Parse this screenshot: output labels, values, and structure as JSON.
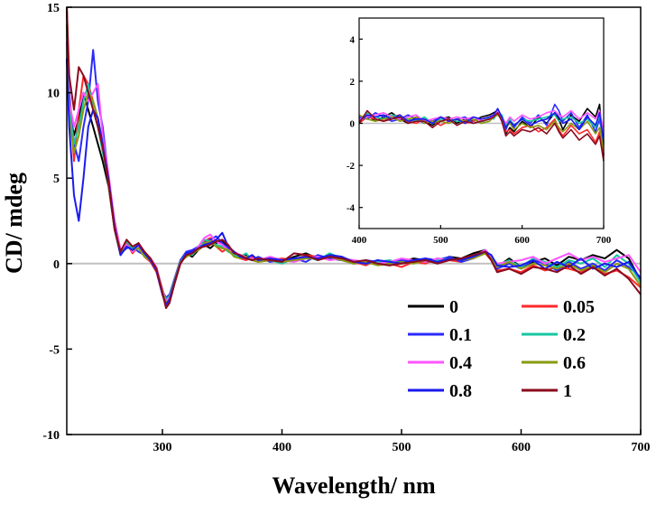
{
  "chart_data": [
    {
      "type": "line",
      "title": "",
      "xlabel": "Wavelength/ nm",
      "ylabel": "CD/ mdeg",
      "xlim": [
        220,
        700
      ],
      "ylim": [
        -10,
        15
      ],
      "x_ticks": [
        300,
        400,
        500,
        600,
        700
      ],
      "y_ticks": [
        -10,
        -5,
        0,
        5,
        10,
        15
      ],
      "grid": false,
      "legend_position": "bottom-right",
      "zero_line_color": "#c0c0c0",
      "series": [
        {
          "name": "0",
          "color": "#000000"
        },
        {
          "name": "0.05",
          "color": "#ff2a2a"
        },
        {
          "name": "0.1",
          "color": "#2a2aff"
        },
        {
          "name": "0.2",
          "color": "#17c7a0"
        },
        {
          "name": "0.4",
          "color": "#ff55ff"
        },
        {
          "name": "0.6",
          "color": "#8a9a10"
        },
        {
          "name": "0.8",
          "color": "#1a1aee"
        },
        {
          "name": "1",
          "color": "#8b0a1e"
        }
      ],
      "x": [
        220,
        222,
        226,
        230,
        234,
        238,
        242,
        246,
        250,
        255,
        260,
        265,
        270,
        275,
        280,
        285,
        290,
        295,
        300,
        303,
        306,
        310,
        315,
        320,
        325,
        330,
        335,
        340,
        345,
        350,
        355,
        360,
        365,
        370,
        375,
        380,
        390,
        400,
        410,
        420,
        430,
        440,
        450,
        460,
        470,
        480,
        490,
        500,
        510,
        520,
        530,
        540,
        550,
        560,
        570,
        575,
        580,
        590,
        600,
        610,
        620,
        630,
        640,
        650,
        660,
        670,
        680,
        690,
        700
      ],
      "series_values": [
        [
          15,
          9,
          7.5,
          8.5,
          10,
          9,
          8,
          7,
          6,
          4.5,
          2,
          0.5,
          1,
          0.8,
          1.2,
          0.6,
          0.3,
          -0.3,
          -1.5,
          -2.3,
          -2,
          -1,
          0,
          0.6,
          0.4,
          0.8,
          1.1,
          0.9,
          1.2,
          1.3,
          1.0,
          0.6,
          0.4,
          0.5,
          0.3,
          0.2,
          0.3,
          0.1,
          0.4,
          0.6,
          0.3,
          0.5,
          0.4,
          0.0,
          0.1,
          0.0,
          -0.1,
          0.1,
          0.3,
          0.2,
          0.1,
          0.4,
          0.3,
          0.6,
          0.8,
          0.4,
          -0.2,
          0.3,
          -0.2,
          0.1,
          0.3,
          -0.1,
          0.4,
          0.2,
          0.5,
          0.3,
          0.8,
          0.3,
          -1.0
        ],
        [
          15,
          10,
          6,
          9,
          11,
          10.5,
          9.5,
          8.5,
          7,
          5,
          2.5,
          0.8,
          1.2,
          0.6,
          1.0,
          0.4,
          0.1,
          -0.5,
          -1.8,
          -2.5,
          -2.2,
          -1.2,
          0,
          0.5,
          0.7,
          0.9,
          1.3,
          1.5,
          1.0,
          0.7,
          0.9,
          0.5,
          0.3,
          0.2,
          0.4,
          0.1,
          0.2,
          0.3,
          0.2,
          0.5,
          0.4,
          0.3,
          0.2,
          0.1,
          -0.1,
          0.2,
          0.0,
          -0.2,
          0.1,
          0.0,
          0.3,
          0.2,
          0.1,
          0.4,
          0.6,
          0.2,
          -0.4,
          -0.3,
          -0.5,
          -0.1,
          -0.4,
          -0.2,
          -0.3,
          -0.5,
          -0.2,
          -0.6,
          -0.4,
          -0.8,
          -1.4
        ],
        [
          12,
          10,
          7,
          6,
          8,
          9.5,
          12.5,
          9.5,
          8,
          5,
          2.2,
          0.6,
          0.9,
          1.0,
          0.7,
          0.5,
          0.2,
          -0.4,
          -1.6,
          -2.0,
          -1.8,
          -0.9,
          0.2,
          0.7,
          0.8,
          1.0,
          1.2,
          1.4,
          1.6,
          1.2,
          0.9,
          0.6,
          0.5,
          0.3,
          0.2,
          0.4,
          0.1,
          0.2,
          0.3,
          0.1,
          0.5,
          0.3,
          0.2,
          0.0,
          0.2,
          0.1,
          0.0,
          0.2,
          0.1,
          0.3,
          0.2,
          0.4,
          0.1,
          0.3,
          0.7,
          0.3,
          -0.3,
          0.0,
          -0.3,
          0.2,
          0.0,
          -0.4,
          0.1,
          -0.3,
          0.0,
          -0.4,
          0.2,
          -0.2,
          -0.8
        ],
        [
          14,
          9,
          7,
          8,
          9.5,
          10.5,
          9,
          8,
          6.5,
          4.8,
          2.3,
          0.7,
          1.3,
          0.9,
          1.1,
          0.5,
          0.2,
          -0.4,
          -1.7,
          -2.1,
          -1.9,
          -1.0,
          0.1,
          0.6,
          0.5,
          0.9,
          1.4,
          1.3,
          1.1,
          1.0,
          0.7,
          0.5,
          0.4,
          0.6,
          0.2,
          0.3,
          0.2,
          0.0,
          0.3,
          0.4,
          0.2,
          0.6,
          0.3,
          0.1,
          0.0,
          0.1,
          0.2,
          0.0,
          0.2,
          0.1,
          0.2,
          0.3,
          0.2,
          0.5,
          0.7,
          0.5,
          -0.1,
          0.2,
          -0.2,
          0.3,
          0.1,
          -0.2,
          0.2,
          0.0,
          0.3,
          -0.2,
          0.5,
          0.0,
          -1.1
        ],
        [
          13,
          9.5,
          8,
          9,
          10,
          9.5,
          10,
          10.5,
          7.5,
          5.2,
          2.4,
          0.8,
          1.1,
          0.7,
          1.0,
          0.6,
          0.3,
          -0.2,
          -1.5,
          -2.2,
          -2.0,
          -1.1,
          0.0,
          0.5,
          0.6,
          1.0,
          1.5,
          1.7,
          1.3,
          1.1,
          0.8,
          0.7,
          0.5,
          0.4,
          0.3,
          0.2,
          0.4,
          0.2,
          0.1,
          0.3,
          0.4,
          0.2,
          0.3,
          0.2,
          0.1,
          0.0,
          0.1,
          0.3,
          0.2,
          0.1,
          0.3,
          0.2,
          0.3,
          0.4,
          0.8,
          0.4,
          0.0,
          0.1,
          0.2,
          0.4,
          0.0,
          0.3,
          0.6,
          0.2,
          0.4,
          0.1,
          0.3,
          0.5,
          -0.5
        ],
        [
          14,
          8.5,
          6.5,
          7.5,
          9,
          10,
          9.5,
          8.5,
          7,
          4.6,
          2.1,
          0.6,
          1.0,
          0.8,
          0.9,
          0.4,
          0.2,
          -0.3,
          -1.6,
          -2.3,
          -2.1,
          -1.0,
          0.1,
          0.4,
          0.6,
          0.8,
          1.2,
          1.3,
          1.0,
          0.9,
          0.8,
          0.4,
          0.3,
          0.4,
          0.2,
          0.1,
          0.2,
          0.1,
          0.2,
          0.3,
          0.3,
          0.4,
          0.2,
          0.0,
          0.1,
          -0.1,
          0.0,
          0.1,
          0.0,
          0.2,
          0.1,
          0.3,
          0.2,
          0.3,
          0.6,
          0.3,
          -0.2,
          0.1,
          -0.3,
          0.0,
          -0.1,
          -0.3,
          0.0,
          -0.4,
          -0.1,
          -0.5,
          0.0,
          -0.3,
          -1.3
        ],
        [
          12,
          8,
          4,
          2.5,
          5,
          8,
          9,
          8.5,
          7,
          4.9,
          2.2,
          0.5,
          1.0,
          0.8,
          1.1,
          0.6,
          0.2,
          -0.4,
          -1.8,
          -2.4,
          -2.1,
          -1.1,
          0.0,
          0.6,
          0.7,
          0.9,
          1.1,
          1.2,
          1.4,
          1.8,
          1.0,
          0.7,
          0.4,
          0.3,
          0.5,
          0.2,
          0.3,
          0.2,
          0.3,
          0.4,
          0.3,
          0.5,
          0.4,
          0.1,
          0.0,
          0.2,
          0.1,
          0.0,
          0.2,
          0.3,
          0.1,
          0.3,
          0.2,
          0.4,
          0.7,
          0.5,
          -0.1,
          -0.2,
          -0.1,
          0.2,
          -0.3,
          0.1,
          -0.2,
          0.3,
          -0.3,
          0.0,
          -0.2,
          0.1,
          -0.9
        ],
        [
          15,
          11,
          9,
          11.5,
          11,
          10,
          9,
          8,
          6.8,
          4.7,
          2.0,
          0.7,
          1.4,
          1.0,
          1.2,
          0.7,
          0.3,
          -0.3,
          -1.7,
          -2.6,
          -2.3,
          -1.2,
          0.0,
          0.5,
          0.6,
          0.9,
          1.0,
          1.1,
          1.3,
          1.4,
          1.1,
          0.6,
          0.5,
          0.3,
          0.2,
          0.3,
          0.2,
          0.1,
          0.6,
          0.5,
          0.2,
          0.4,
          0.3,
          0.1,
          0.2,
          0.0,
          -0.1,
          0.0,
          0.1,
          0.2,
          0.0,
          0.2,
          0.3,
          0.5,
          0.7,
          0.2,
          -0.5,
          -0.3,
          -0.6,
          -0.2,
          -0.3,
          -0.5,
          -0.1,
          -0.6,
          -0.2,
          -0.7,
          -0.3,
          -0.9,
          -1.8
        ]
      ]
    },
    {
      "type": "line",
      "title": "",
      "xlabel": "",
      "ylabel": "",
      "xlim": [
        400,
        700
      ],
      "ylim": [
        -5,
        5
      ],
      "x_ticks": [
        400,
        500,
        600,
        700
      ],
      "y_ticks": [
        -4,
        -2,
        0,
        2,
        4
      ],
      "grid": false,
      "x": [
        400,
        410,
        420,
        430,
        440,
        450,
        460,
        470,
        480,
        490,
        500,
        510,
        520,
        530,
        540,
        550,
        560,
        565,
        570,
        575,
        580,
        585,
        590,
        600,
        610,
        620,
        630,
        640,
        645,
        650,
        660,
        670,
        680,
        690,
        695,
        700
      ],
      "series_values": [
        [
          0.2,
          0.4,
          0.1,
          0.3,
          0.5,
          0.2,
          0.0,
          0.3,
          0.1,
          -0.1,
          0.2,
          0.3,
          0.0,
          0.2,
          0.1,
          0.3,
          0.4,
          0.5,
          0.6,
          0.2,
          -0.5,
          -0.2,
          -0.4,
          0.1,
          -0.2,
          0.3,
          0.0,
          0.5,
          0.2,
          -0.3,
          0.4,
          0.1,
          0.7,
          0.3,
          0.9,
          -1.5
        ],
        [
          0.0,
          0.3,
          0.2,
          0.1,
          0.3,
          0.4,
          0.1,
          0.0,
          0.2,
          0.1,
          -0.1,
          0.1,
          0.2,
          0.0,
          0.1,
          0.2,
          0.3,
          0.4,
          0.5,
          0.1,
          -0.4,
          -0.3,
          -0.5,
          -0.2,
          -0.1,
          -0.4,
          -0.2,
          0.2,
          -0.3,
          -0.6,
          -0.1,
          -0.5,
          -0.3,
          -0.9,
          -0.4,
          -1.6
        ],
        [
          0.3,
          0.2,
          0.5,
          0.3,
          0.1,
          0.2,
          0.4,
          0.2,
          0.0,
          0.1,
          0.3,
          0.1,
          0.2,
          0.3,
          0.0,
          0.1,
          0.2,
          0.3,
          0.4,
          0.3,
          -0.3,
          0.1,
          -0.2,
          0.3,
          0.0,
          0.4,
          -0.1,
          0.9,
          0.6,
          0.1,
          0.5,
          -0.2,
          0.4,
          -0.4,
          0.2,
          -1.0
        ],
        [
          0.1,
          0.5,
          0.3,
          0.2,
          0.4,
          0.3,
          0.2,
          0.1,
          0.3,
          0.0,
          0.2,
          0.2,
          0.1,
          0.1,
          0.2,
          0.0,
          0.3,
          0.2,
          0.5,
          0.4,
          -0.1,
          0.2,
          -0.1,
          0.2,
          0.1,
          0.2,
          0.3,
          0.4,
          0.1,
          0.2,
          0.3,
          0.0,
          0.2,
          -0.2,
          0.4,
          -1.0
        ],
        [
          0.2,
          0.3,
          0.4,
          0.5,
          0.3,
          0.2,
          0.3,
          0.4,
          0.1,
          0.2,
          0.3,
          0.2,
          0.3,
          0.2,
          0.3,
          0.1,
          0.2,
          0.4,
          0.6,
          0.3,
          0.0,
          0.3,
          0.1,
          0.4,
          0.2,
          0.3,
          0.5,
          0.6,
          0.4,
          0.3,
          0.6,
          0.2,
          0.5,
          0.2,
          0.6,
          -0.4
        ],
        [
          0.4,
          0.2,
          0.1,
          0.2,
          0.3,
          0.1,
          0.2,
          0.3,
          0.0,
          0.1,
          0.1,
          0.0,
          0.2,
          0.1,
          0.2,
          0.0,
          0.1,
          0.3,
          0.4,
          0.2,
          -0.2,
          0.0,
          -0.3,
          0.0,
          -0.2,
          -0.1,
          -0.3,
          0.1,
          -0.2,
          -0.4,
          0.0,
          -0.3,
          0.1,
          -0.5,
          -0.2,
          -1.3
        ],
        [
          0.1,
          0.4,
          0.3,
          0.4,
          0.2,
          0.4,
          0.1,
          0.2,
          0.2,
          0.0,
          0.3,
          0.1,
          0.2,
          0.0,
          0.3,
          0.2,
          0.3,
          0.4,
          0.7,
          0.3,
          -0.2,
          0.1,
          -0.1,
          0.2,
          -0.1,
          0.1,
          0.2,
          0.5,
          0.3,
          0.0,
          0.2,
          -0.3,
          0.3,
          -0.1,
          0.5,
          -0.9
        ],
        [
          0.0,
          0.6,
          0.2,
          0.1,
          0.2,
          0.3,
          0.0,
          0.1,
          0.1,
          -0.2,
          0.1,
          0.2,
          -0.1,
          0.1,
          0.0,
          0.1,
          0.2,
          0.3,
          0.5,
          0.1,
          -0.6,
          -0.4,
          -0.6,
          -0.3,
          -0.4,
          -0.2,
          -0.5,
          0.0,
          -0.4,
          -0.7,
          -0.3,
          -0.8,
          -0.5,
          -1.0,
          -0.6,
          -1.8
        ]
      ]
    }
  ]
}
